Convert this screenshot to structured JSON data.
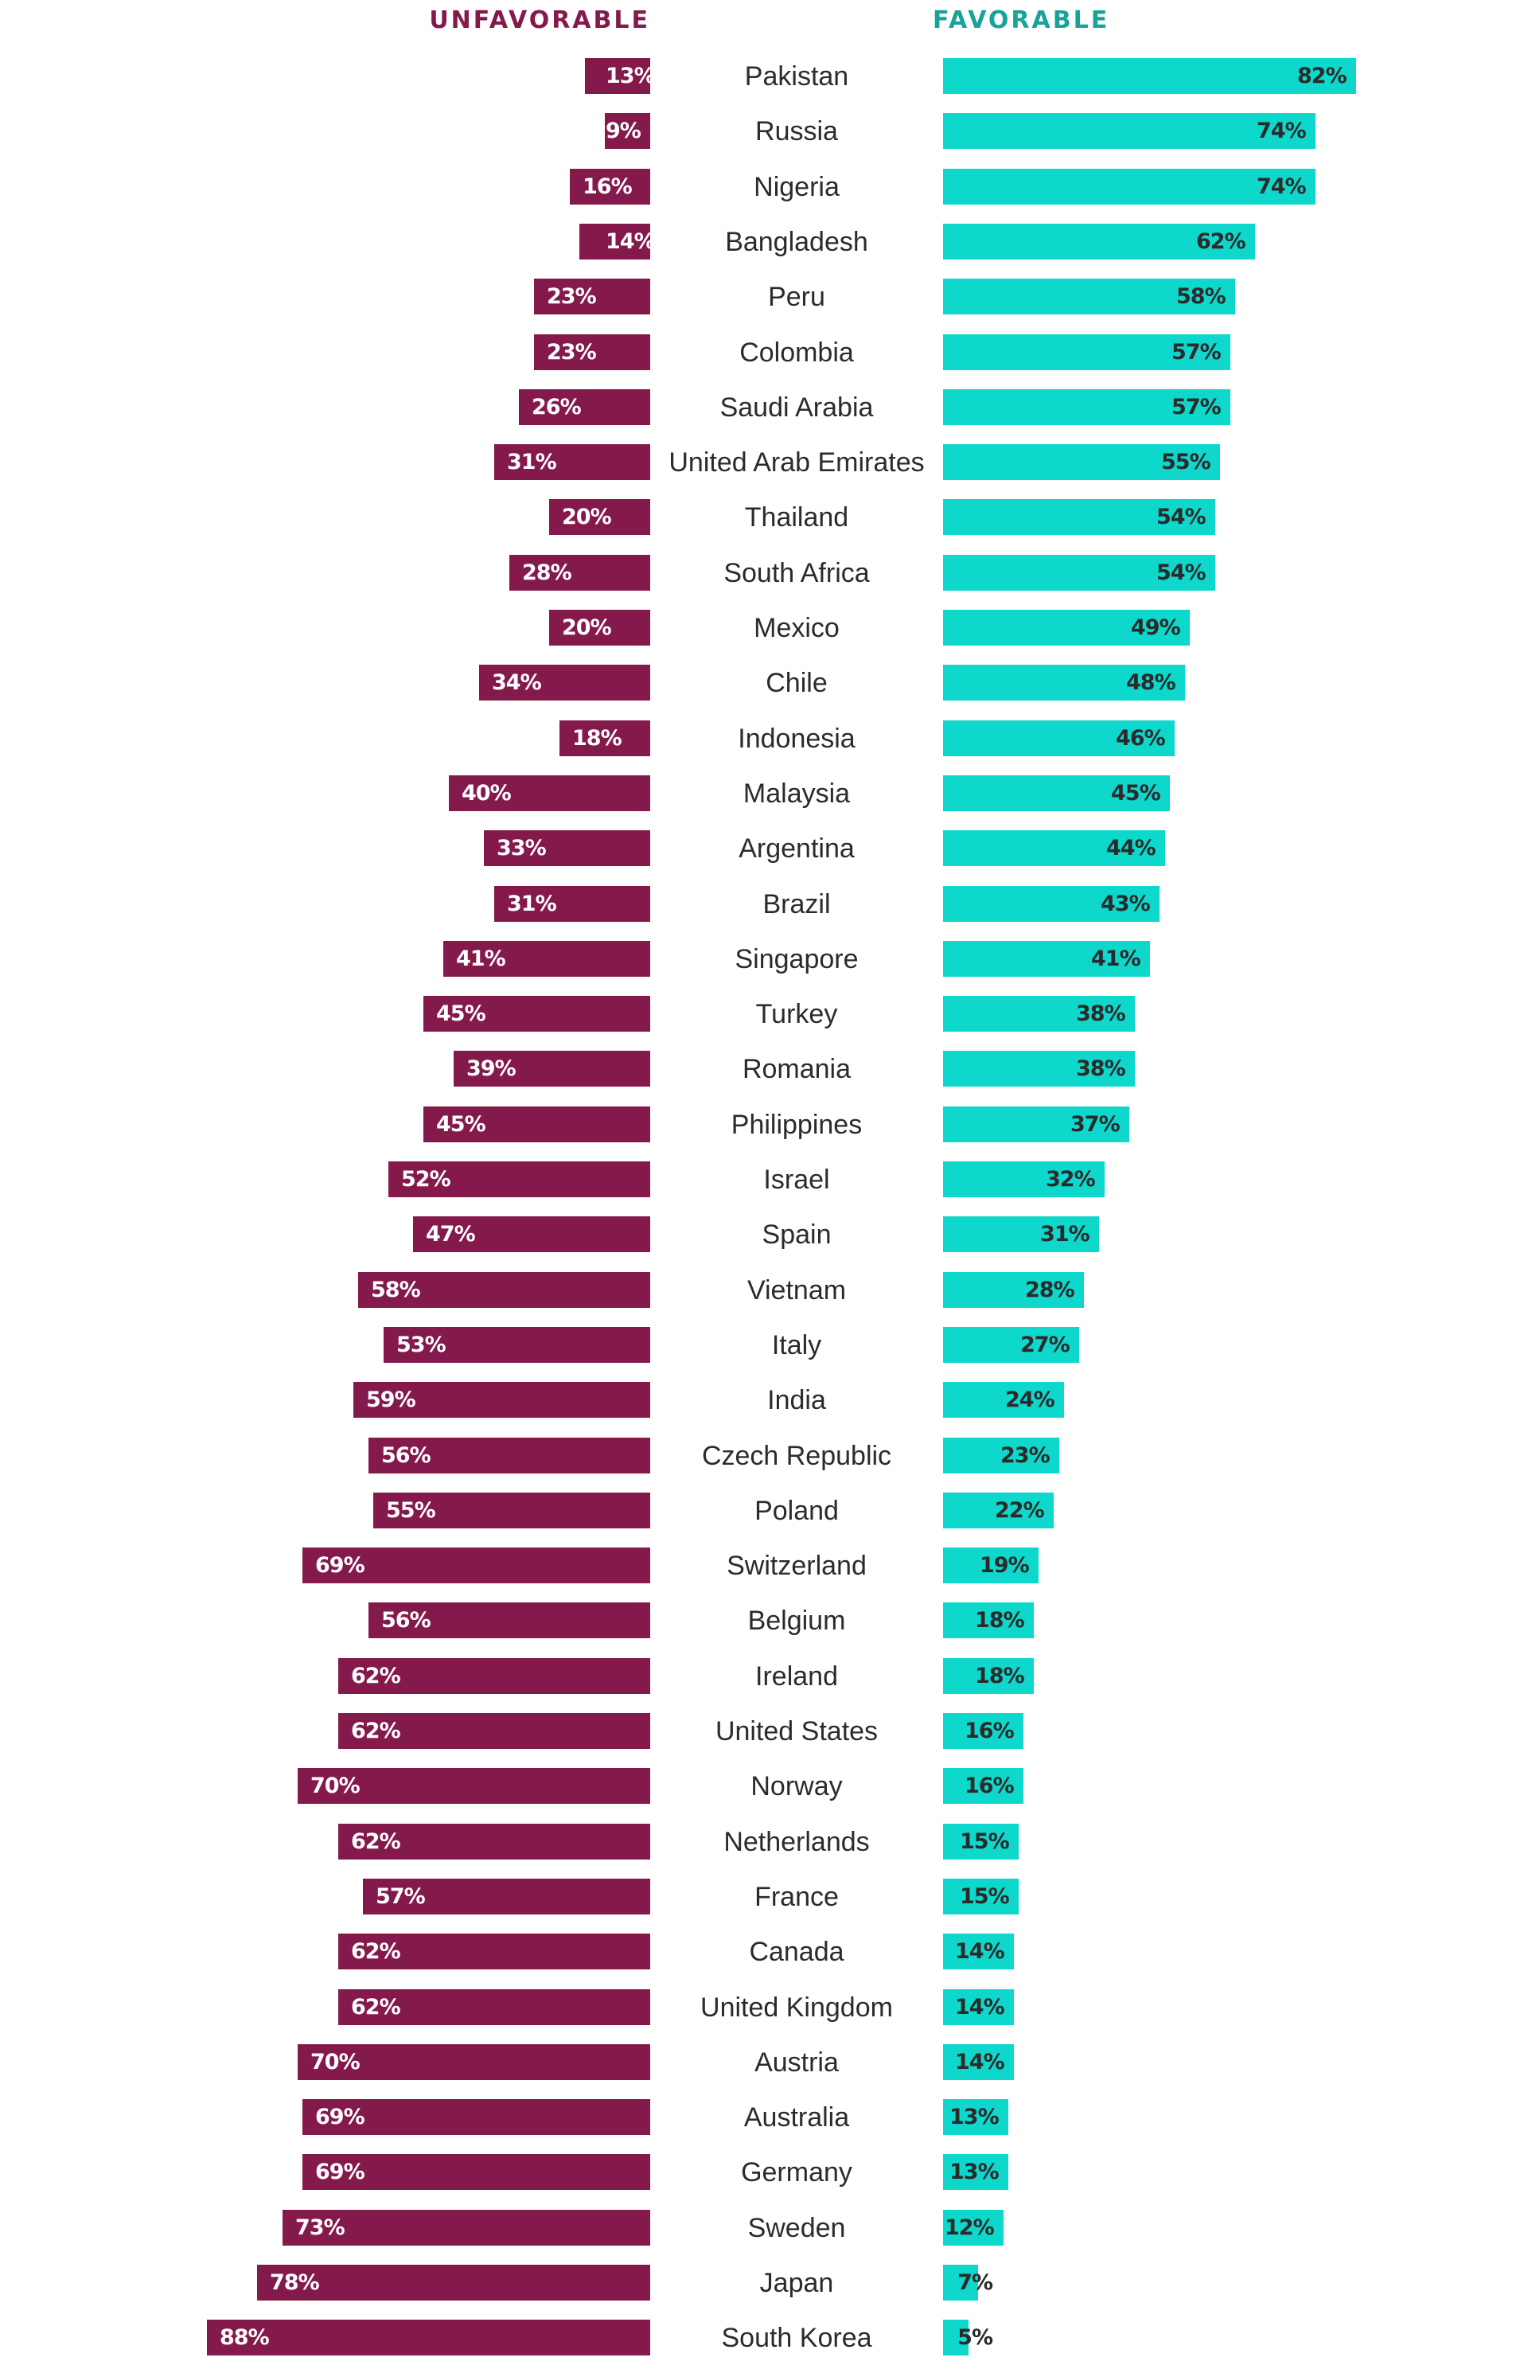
{
  "colors": {
    "unfavorable": "#84194C",
    "favorable": "#0ED7CC",
    "unfavorable_header": "#84194C",
    "favorable_header": "#16A39A"
  },
  "headers": {
    "unfavorable": "UNFAVORABLE",
    "favorable": "FAVORABLE"
  },
  "chart_data": {
    "type": "bar",
    "orientation": "horizontal-diverging",
    "title": "",
    "xlabel": "",
    "ylabel": "",
    "xlim": [
      0,
      100
    ],
    "grid": false,
    "legend": [
      "UNFAVORABLE",
      "FAVORABLE"
    ],
    "legend_placement": "top",
    "categories": [
      "Pakistan",
      "Russia",
      "Nigeria",
      "Bangladesh",
      "Peru",
      "Colombia",
      "Saudi Arabia",
      "United Arab Emirates",
      "Thailand",
      "South Africa",
      "Mexico",
      "Chile",
      "Indonesia",
      "Malaysia",
      "Argentina",
      "Brazil",
      "Singapore",
      "Turkey",
      "Romania",
      "Philippines",
      "Israel",
      "Spain",
      "Vietnam",
      "Italy",
      "India",
      "Czech Republic",
      "Poland",
      "Switzerland",
      "Belgium",
      "Ireland",
      "United States",
      "Norway",
      "Netherlands",
      "France",
      "Canada",
      "United Kingdom",
      "Austria",
      "Australia",
      "Germany",
      "Sweden",
      "Japan",
      "South Korea"
    ],
    "series": [
      {
        "name": "UNFAVORABLE",
        "unit": "%",
        "values": [
          13,
          9,
          16,
          14,
          23,
          23,
          26,
          31,
          20,
          28,
          20,
          34,
          18,
          40,
          33,
          31,
          41,
          45,
          39,
          45,
          52,
          47,
          58,
          53,
          59,
          56,
          55,
          69,
          56,
          62,
          62,
          70,
          62,
          57,
          62,
          62,
          70,
          69,
          69,
          73,
          78,
          88
        ]
      },
      {
        "name": "FAVORABLE",
        "unit": "%",
        "values": [
          82,
          74,
          74,
          62,
          58,
          57,
          57,
          55,
          54,
          54,
          49,
          48,
          46,
          45,
          44,
          43,
          41,
          38,
          38,
          37,
          32,
          31,
          28,
          27,
          24,
          23,
          22,
          19,
          18,
          18,
          16,
          16,
          15,
          15,
          14,
          14,
          14,
          13,
          13,
          12,
          7,
          5
        ]
      }
    ]
  }
}
